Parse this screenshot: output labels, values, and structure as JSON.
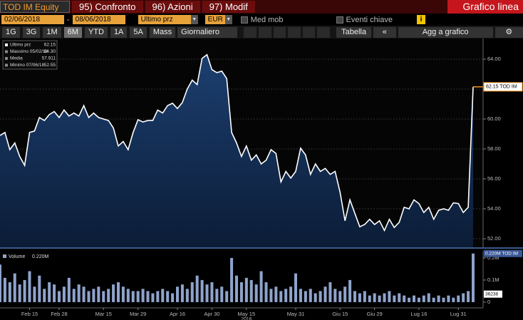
{
  "toolbar": {
    "ticker": "TOD IM Equity",
    "actions": [
      "95) Confronto",
      "96) Azioni",
      "97) Modif"
    ],
    "chart_type": "Grafico linea"
  },
  "controls": {
    "start_date": "02/06/2018",
    "separator": "-",
    "end_date": "08/06/2018",
    "field": "Ultimo prz",
    "currency": "EUR",
    "moving_avg": "Med mob",
    "events": "Eventi chiave",
    "info": "i"
  },
  "range_bar": {
    "periods": [
      "1G",
      "3G",
      "1M",
      "6M",
      "YTD",
      "1A",
      "5A",
      "Mass"
    ],
    "selected": 3,
    "frequency": "Giornaliero",
    "table": "Tabella",
    "collapse": "«",
    "add": "Agg a grafico"
  },
  "chart_data": [
    {
      "type": "area",
      "values": [
        58.9,
        59.1,
        57.95,
        58.4,
        57.5,
        56.9,
        59.1,
        59.2,
        60.1,
        59.9,
        60.3,
        60.5,
        60.1,
        60.6,
        60.2,
        60.4,
        60.2,
        60.9,
        60.1,
        60.4,
        60.1,
        60.0,
        59.9,
        59.4,
        58.2,
        58.5,
        57.95,
        59.1,
        59.95,
        59.8,
        59.9,
        59.9,
        60.6,
        60.4,
        60.9,
        61.05,
        60.7,
        61.1,
        62.0,
        62.6,
        62.3,
        64.05,
        64.3,
        63.3,
        63.1,
        63.2,
        62.7,
        59.1,
        58.4,
        57.5,
        58.2,
        57.25,
        57.6,
        57.0,
        57.25,
        57.95,
        57.7,
        55.8,
        56.5,
        56.05,
        56.5,
        58.05,
        57.6,
        56.3,
        57.0,
        56.5,
        56.7,
        56.3,
        56.5,
        55.1,
        53.2,
        54.6,
        53.7,
        52.8,
        52.95,
        53.3,
        52.95,
        53.2,
        52.55,
        53.3,
        52.75,
        53.1,
        54.1,
        54.0,
        54.6,
        54.35,
        53.75,
        54.1,
        53.3,
        53.9,
        54.0,
        53.9,
        54.4,
        54.35,
        53.75,
        54.1,
        62.15
      ],
      "color": "#ffffff",
      "fill": "#13325e",
      "ylim": [
        51.38,
        65.38
      ],
      "yticks": [
        {
          "value": 52,
          "label": "52.00"
        },
        {
          "value": 54,
          "label": "54.00"
        },
        {
          "value": 56,
          "label": "56.00"
        },
        {
          "value": 58,
          "label": "58.00"
        },
        {
          "value": 60,
          "label": "60.00"
        },
        {
          "value": 62,
          "label": "62.00"
        },
        {
          "value": 64,
          "label": "64.00"
        }
      ],
      "grid": true,
      "legend": [
        {
          "name": "Ultimo prz",
          "value": 62.15
        },
        {
          "name": "Massimo 05/02/18",
          "value": {
            "value": 64.3,
            "label": "64.30"
          }
        },
        {
          "name": "Media",
          "value": 57.911
        },
        {
          "name": "Minimo 07/06/18",
          "value": 52.55
        }
      ],
      "last_label": "62.15 TOD IM",
      "last_color": "#f7941d"
    },
    {
      "type": "bar",
      "categories": [
        null,
        null,
        null,
        null,
        null,
        null,
        "Feb 15",
        null,
        null,
        null,
        null,
        null,
        "Feb 28",
        null,
        null,
        null,
        null,
        null,
        null,
        null,
        null,
        "Mar 15",
        null,
        null,
        null,
        null,
        null,
        null,
        "Mar 29",
        null,
        null,
        null,
        null,
        null,
        null,
        null,
        "Apr 16",
        null,
        null,
        null,
        null,
        null,
        null,
        "Apr 30",
        null,
        null,
        null,
        null,
        null,
        null,
        "May 15",
        null,
        null,
        null,
        null,
        null,
        null,
        null,
        null,
        null,
        "May 31",
        null,
        null,
        null,
        null,
        null,
        null,
        null,
        null,
        "Giu 15",
        null,
        null,
        null,
        null,
        null,
        null,
        "Giu 29",
        null,
        null,
        null,
        null,
        null,
        null,
        null,
        null,
        "Lug 16",
        null,
        null,
        null,
        null,
        null,
        null,
        null,
        "Lug 31",
        null,
        null,
        null
      ],
      "x_sublabel": "2018",
      "series": [
        {
          "name": "Volume",
          "color": "#8fa4cc",
          "values": [
            0.17,
            0.11,
            0.09,
            0.13,
            0.08,
            0.1,
            0.14,
            0.07,
            0.12,
            0.06,
            0.09,
            0.08,
            0.05,
            0.07,
            0.11,
            0.06,
            0.08,
            0.07,
            0.05,
            0.06,
            0.07,
            0.05,
            0.06,
            0.08,
            0.09,
            0.07,
            0.06,
            0.05,
            0.05,
            0.06,
            0.05,
            0.04,
            0.05,
            0.06,
            0.05,
            0.04,
            0.07,
            0.08,
            0.06,
            0.09,
            0.12,
            0.1,
            0.08,
            0.09,
            0.06,
            0.07,
            0.05,
            0.2,
            0.12,
            0.09,
            0.11,
            0.1,
            0.08,
            0.14,
            0.09,
            0.06,
            0.07,
            0.05,
            0.06,
            0.07,
            0.13,
            0.06,
            0.05,
            0.06,
            0.04,
            0.05,
            0.07,
            0.09,
            0.06,
            0.05,
            0.07,
            0.1,
            0.05,
            0.04,
            0.05,
            0.03,
            0.04,
            0.03,
            0.04,
            0.05,
            0.03,
            0.04,
            0.03,
            0.02,
            0.03,
            0.02,
            0.03,
            0.04,
            0.02,
            0.03,
            0.02,
            0.03,
            0.02,
            0.03,
            0.04,
            0.05,
            0.22
          ]
        }
      ],
      "legend_value": "0.220M",
      "ylim": [
        -0.026,
        0.232
      ],
      "yticks": [
        0,
        {
          "value": 0.1,
          "label": "0.1M"
        },
        {
          "value": 0.2,
          "label": "0.2M"
        }
      ],
      "last_label": "0.220M TOD IM",
      "avg": {
        "value": 0.036238,
        "label": "36238"
      }
    }
  ]
}
